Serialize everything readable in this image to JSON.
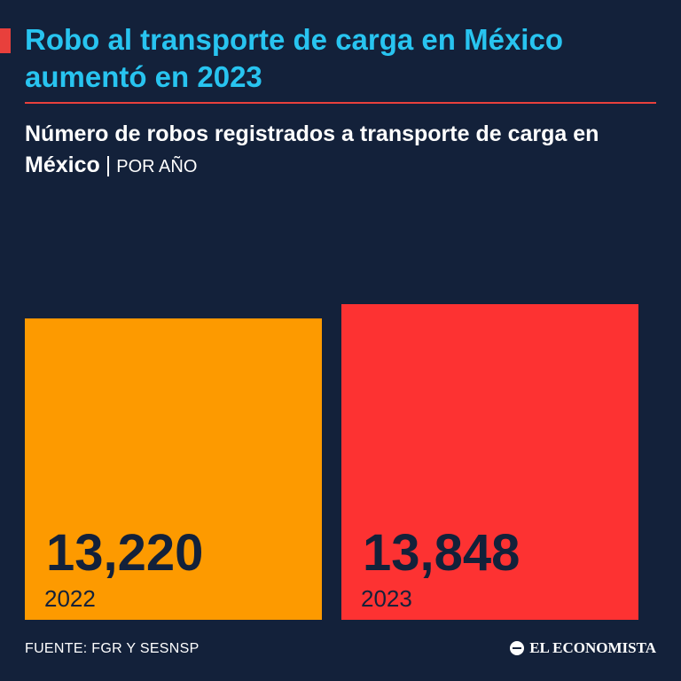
{
  "header": {
    "title": "Robo al transporte de carga en México aumentó en 2023",
    "subtitle": "Número de robos registrados a transporte de carga en México",
    "separator": "|",
    "unit_label": "POR AÑO"
  },
  "colors": {
    "background": "#13213a",
    "title": "#28c4f0",
    "accent": "#e8403c",
    "bar_2022": "#fd9a00",
    "bar_2023": "#fd3232",
    "value_text": "#13213a"
  },
  "chart_data": {
    "type": "bar",
    "categories": [
      "2022",
      "2023"
    ],
    "values": [
      13220,
      13848
    ],
    "value_labels": [
      "13,220",
      "13,848"
    ],
    "title": "Número de robos registrados a transporte de carga en México",
    "xlabel": "",
    "ylabel": "",
    "ylim": [
      0,
      13848
    ],
    "grid": false,
    "legend": "none"
  },
  "footer": {
    "source": "FUENTE: FGR Y SESNSP",
    "brand": "EL ECONOMISTA",
    "brand_icon": "el-economista-logo-icon"
  }
}
